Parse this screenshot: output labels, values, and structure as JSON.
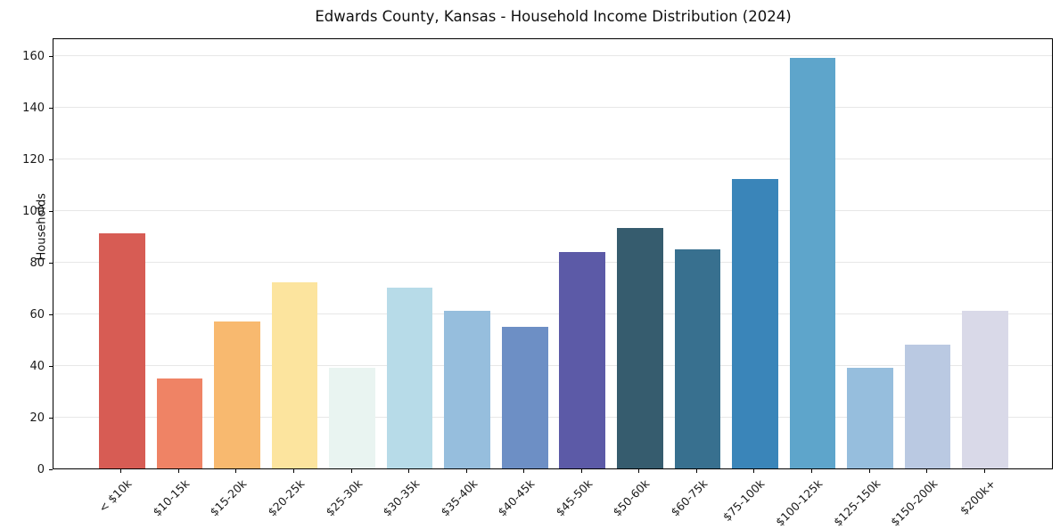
{
  "title": "Edwards County, Kansas - Household Income Distribution (2024)",
  "chart_data": {
    "type": "bar",
    "title": "Edwards County, Kansas - Household Income Distribution (2024)",
    "xlabel": "",
    "ylabel": "Households",
    "categories": [
      "< $10k",
      "$10-15k",
      "$15-20k",
      "$20-25k",
      "$25-30k",
      "$30-35k",
      "$35-40k",
      "$40-45k",
      "$45-50k",
      "$50-60k",
      "$60-75k",
      "$75-100k",
      "$100-125k",
      "$125-150k",
      "$150-200k",
      "$200k+"
    ],
    "values": [
      91,
      35,
      57,
      72,
      39,
      70,
      61,
      55,
      84,
      93,
      85,
      112,
      159,
      39,
      48,
      61
    ],
    "bar_colors": [
      "#d75c54",
      "#ef8365",
      "#f8b96f",
      "#fce49e",
      "#e9f4f1",
      "#b7dbe8",
      "#96bedd",
      "#6d8fc5",
      "#5c5aa7",
      "#365c6e",
      "#38708f",
      "#3a85b9",
      "#5ea5cb",
      "#96bedd",
      "#bac9e2",
      "#d9d9e8"
    ],
    "ylim": [
      0,
      167
    ],
    "yticks": [
      0,
      20,
      40,
      60,
      80,
      100,
      120,
      140,
      160
    ],
    "grid": "horizontal",
    "legend": "none",
    "background_color": "#ffffff",
    "spine_color": "#000000",
    "gridline_color": "#e7e7e7",
    "tick_label_color": "#1a1a1a"
  }
}
